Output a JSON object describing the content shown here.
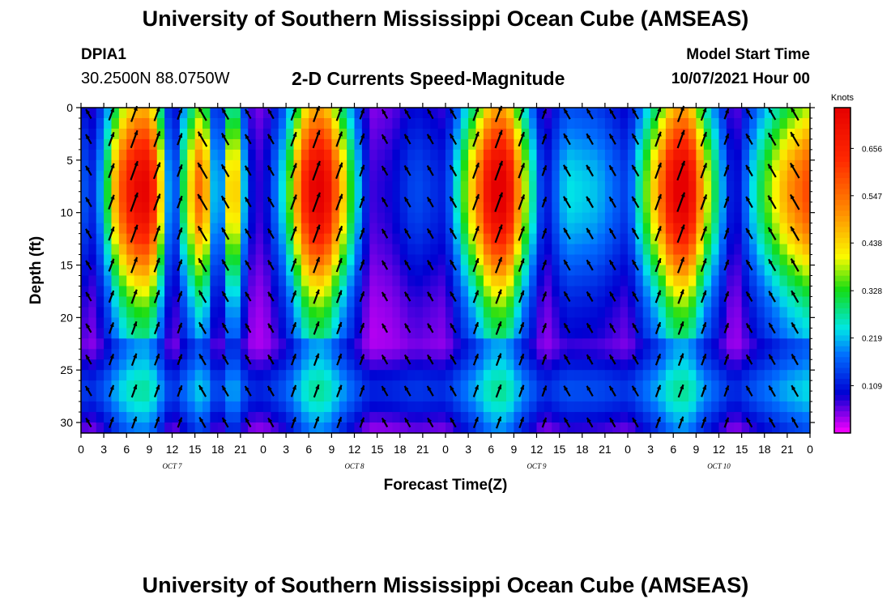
{
  "header": {
    "title": "University of Southern Mississippi Ocean Cube (AMSEAS)",
    "station_id": "DPIA1",
    "station_coords": "30.2500N  88.0750W",
    "plot_title": "2-D Currents Speed-Magnitude",
    "start_label": "Model Start Time",
    "start_value": "10/07/2021 Hour 00"
  },
  "footer": {
    "title": "University of Southern Mississippi Ocean Cube (AMSEAS)"
  },
  "chart_data": {
    "type": "heatmap",
    "title": "2-D Currents Speed-Magnitude",
    "xlabel": "Forecast Time(Z)",
    "ylabel": "Depth (ft)",
    "x_tick_labels": [
      "0",
      "3",
      "6",
      "9",
      "12",
      "15",
      "18",
      "21",
      "0",
      "3",
      "6",
      "9",
      "12",
      "15",
      "18",
      "21",
      "0",
      "3",
      "6",
      "9",
      "12",
      "15",
      "18",
      "21",
      "0",
      "3",
      "6",
      "9",
      "12",
      "15",
      "18",
      "21",
      "0"
    ],
    "day_labels": [
      "OCT 7",
      "OCT 8",
      "OCT 9",
      "OCT 10"
    ],
    "xlim_hours": [
      0,
      96
    ],
    "y_tick_labels": [
      "0",
      "5",
      "10",
      "15",
      "20",
      "25",
      "30"
    ],
    "ylim": [
      0,
      31
    ],
    "colorbar": {
      "unit": "Knots",
      "tick_labels": [
        "0.656",
        "0.547",
        "0.438",
        "0.328",
        "0.219",
        "0.109"
      ],
      "tick_values": [
        0.656,
        0.547,
        0.438,
        0.328,
        0.219,
        0.109
      ],
      "range": [
        0.0,
        0.75
      ]
    },
    "depths_ft": [
      0,
      3,
      6,
      9,
      12,
      15,
      18,
      21,
      24,
      27,
      30
    ],
    "speed_at_5ft_by_hour": [
      {
        "hour": 0,
        "speed": 0.2
      },
      {
        "hour": 1,
        "speed": 0.08
      },
      {
        "hour": 3,
        "speed": 0.22
      },
      {
        "hour": 5,
        "speed": 0.5
      },
      {
        "hour": 7,
        "speed": 0.66
      },
      {
        "hour": 9,
        "speed": 0.68
      },
      {
        "hour": 10,
        "speed": 0.5
      },
      {
        "hour": 12,
        "speed": 0.08
      },
      {
        "hour": 14,
        "speed": 0.35
      },
      {
        "hour": 16,
        "speed": 0.55
      },
      {
        "hour": 18,
        "speed": 0.08
      },
      {
        "hour": 20,
        "speed": 0.5
      },
      {
        "hour": 22,
        "speed": 0.1
      },
      {
        "hour": 24,
        "speed": 0.06
      },
      {
        "hour": 27,
        "speed": 0.25
      },
      {
        "hour": 30,
        "speed": 0.66
      },
      {
        "hour": 32,
        "speed": 0.7
      },
      {
        "hour": 35,
        "speed": 0.35
      },
      {
        "hour": 38,
        "speed": 0.06
      },
      {
        "hour": 41,
        "speed": 0.08
      },
      {
        "hour": 44,
        "speed": 0.14
      },
      {
        "hour": 48,
        "speed": 0.1
      },
      {
        "hour": 52,
        "speed": 0.45
      },
      {
        "hour": 54,
        "speed": 0.68
      },
      {
        "hour": 56,
        "speed": 0.7
      },
      {
        "hour": 58,
        "speed": 0.4
      },
      {
        "hour": 61,
        "speed": 0.08
      },
      {
        "hour": 64,
        "speed": 0.22
      },
      {
        "hour": 68,
        "speed": 0.2
      },
      {
        "hour": 72,
        "speed": 0.12
      },
      {
        "hour": 76,
        "speed": 0.45
      },
      {
        "hour": 78,
        "speed": 0.68
      },
      {
        "hour": 80,
        "speed": 0.7
      },
      {
        "hour": 82,
        "speed": 0.4
      },
      {
        "hour": 86,
        "speed": 0.06
      },
      {
        "hour": 89,
        "speed": 0.25
      },
      {
        "hour": 93,
        "speed": 0.45
      },
      {
        "hour": 96,
        "speed": 0.55
      }
    ]
  },
  "colors": {
    "plot_border": "#000000",
    "arrow": "#000000"
  }
}
